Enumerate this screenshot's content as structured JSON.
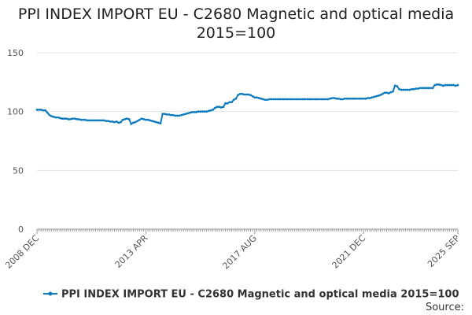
{
  "chart_data": {
    "type": "line",
    "title": "PPI INDEX IMPORT EU - C2680 Magnetic and optical media 2015=100",
    "source_label": "Source:",
    "categories": [
      "2008 DEC",
      null,
      null,
      null,
      null,
      null,
      null,
      null,
      null,
      null,
      null,
      null,
      null,
      null,
      null,
      null,
      null,
      null,
      null,
      null,
      null,
      null,
      null,
      null,
      null,
      null,
      null,
      null,
      null,
      null,
      null,
      null,
      null,
      null,
      null,
      null,
      null,
      null,
      null,
      null,
      null,
      null,
      null,
      null,
      null,
      null,
      null,
      null,
      null,
      null,
      null,
      null,
      "2013 APR",
      null,
      null,
      null,
      null,
      null,
      null,
      null,
      null,
      null,
      null,
      null,
      null,
      null,
      null,
      null,
      null,
      null,
      null,
      null,
      null,
      null,
      null,
      null,
      null,
      null,
      null,
      null,
      null,
      null,
      null,
      null,
      null,
      null,
      null,
      null,
      null,
      null,
      null,
      null,
      null,
      null,
      null,
      null,
      null,
      null,
      null,
      null,
      null,
      null,
      null,
      null,
      "2017 AUG",
      null,
      null,
      null,
      null,
      null,
      null,
      null,
      null,
      null,
      null,
      null,
      null,
      null,
      null,
      null,
      null,
      null,
      null,
      null,
      null,
      null,
      null,
      null,
      null,
      null,
      null,
      null,
      null,
      null,
      null,
      null,
      null,
      null,
      null,
      null,
      null,
      null,
      null,
      null,
      null,
      null,
      null,
      null,
      null,
      null,
      null,
      null,
      null,
      null,
      null,
      null,
      "2021 DEC",
      null,
      null,
      null,
      null,
      null,
      null,
      null,
      null,
      null,
      null,
      null,
      null,
      null,
      null,
      null,
      null,
      null,
      null,
      null,
      null,
      null,
      null,
      null,
      null,
      null,
      null,
      null,
      null,
      null,
      null,
      null,
      null,
      null,
      null,
      null,
      null,
      null,
      null,
      null,
      null,
      null,
      null,
      null,
      null,
      "2025 SEP"
    ],
    "series": [
      {
        "name": "PPI INDEX IMPORT EU - C2680 Magnetic and optical media 2015=100",
        "color": "#0f7bbf",
        "values": [
          101.5,
          101.5,
          101.5,
          101,
          101,
          99,
          97,
          96,
          95.5,
          95,
          95,
          94.5,
          94,
          94,
          94,
          93.5,
          93.5,
          94,
          94,
          93.5,
          93.5,
          93,
          93,
          93,
          92.5,
          92.5,
          92.5,
          92.5,
          92.5,
          92.5,
          92.5,
          92.5,
          92.5,
          92,
          92,
          91.5,
          91.5,
          91,
          91.5,
          90.5,
          91,
          93,
          93.5,
          94,
          93.5,
          89.5,
          90.5,
          91,
          92,
          93,
          94,
          93.5,
          93,
          93,
          92.5,
          92,
          91.5,
          91,
          90.5,
          90,
          98,
          98,
          97.5,
          97.5,
          97,
          97,
          96.5,
          96.5,
          96.5,
          97,
          97.5,
          98,
          98.5,
          99,
          99.5,
          99.5,
          99.5,
          100,
          100,
          100,
          100,
          100,
          100.5,
          101,
          101.5,
          103,
          104,
          104,
          103.5,
          104,
          107,
          107,
          108,
          108,
          110,
          111,
          114,
          115,
          115,
          114.5,
          114.5,
          114.5,
          114,
          113,
          112,
          112,
          111.5,
          111,
          110.5,
          110,
          110,
          110.5,
          110.5,
          110.5,
          110.5,
          110.5,
          110.5,
          110.5,
          110.5,
          110.5,
          110.5,
          110.5,
          110.5,
          110.5,
          110.5,
          110.5,
          110.5,
          110.5,
          110.5,
          110.5,
          110.5,
          110.5,
          110.5,
          110.5,
          110.5,
          110.5,
          110.5,
          110.5,
          110.5,
          110.5,
          111,
          111.5,
          111.5,
          111,
          111,
          110.5,
          110.5,
          111,
          111,
          111,
          111,
          111,
          111,
          111,
          111,
          111,
          111,
          111,
          111.5,
          111.5,
          112,
          112.5,
          113,
          113.5,
          114,
          115,
          116,
          116,
          115.5,
          116.5,
          117,
          122,
          121.5,
          119,
          118.5,
          118.5,
          118.5,
          118.5,
          118.5,
          119,
          119,
          119.5,
          119.5,
          120,
          120,
          120,
          120,
          120,
          120,
          120,
          122.5,
          123,
          123,
          122.5,
          122,
          122.5,
          122.5,
          122.5,
          122.5,
          122.5,
          122,
          122.5
        ]
      }
    ],
    "ylim": [
      0,
      150
    ],
    "yticks": [
      0,
      50,
      100,
      150
    ],
    "grid": true
  }
}
